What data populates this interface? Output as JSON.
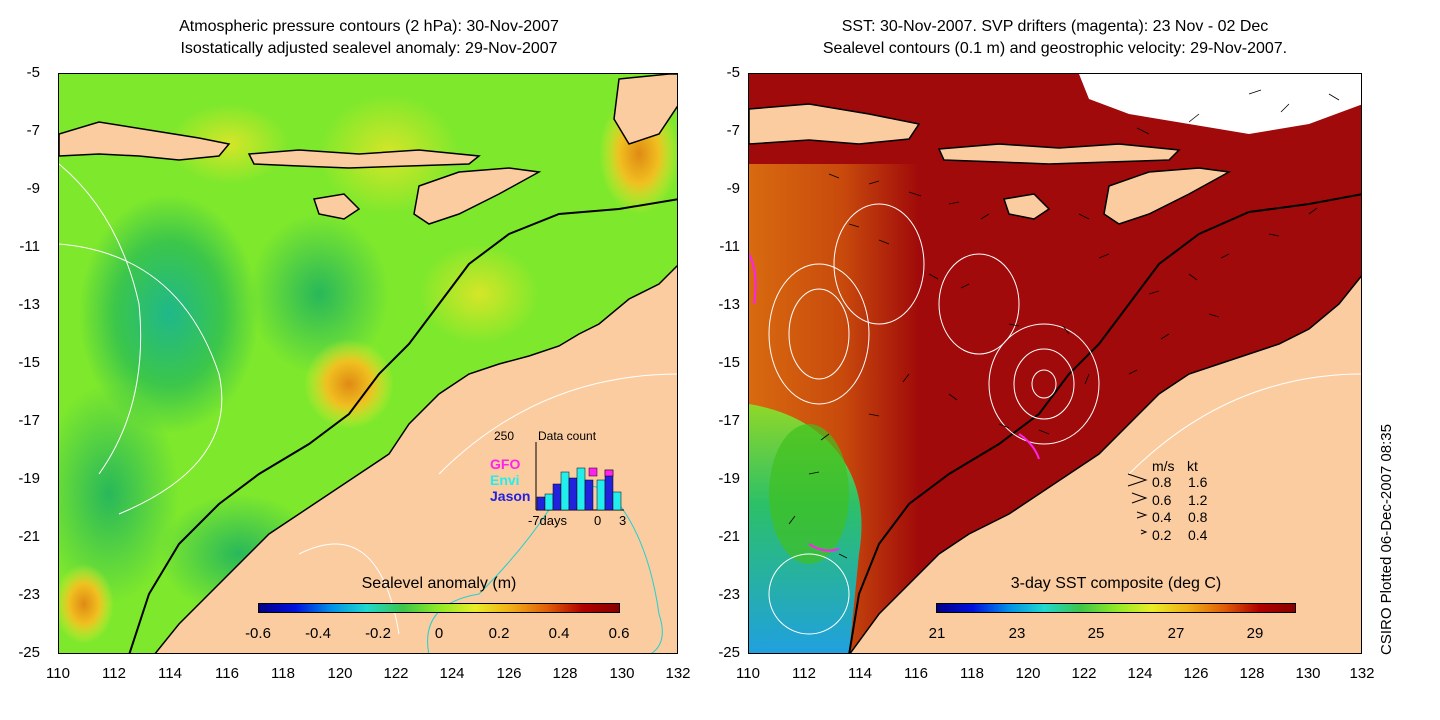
{
  "left_panel": {
    "title_line1": "Atmospheric pressure contours (2 hPa): 30-Nov-2007",
    "title_line2": "Isostatically adjusted sealevel anomaly: 29-Nov-2007",
    "colorbar_title": "Sealevel anomaly (m)",
    "colorbar_ticks": [
      "-0.6",
      "-0.4",
      "-0.2",
      "0",
      "0.2",
      "0.4",
      "0.6"
    ],
    "data_count": {
      "max_label": "250",
      "title": "Data count",
      "axis_labels": [
        "-7days",
        "0",
        "3"
      ],
      "legend": [
        {
          "label": "GFO",
          "color": "#ff22ee"
        },
        {
          "label": "Envi",
          "color": "#22eeee"
        },
        {
          "label": "Jason",
          "color": "#2222dd"
        }
      ]
    }
  },
  "right_panel": {
    "title_line1": "SST: 30-Nov-2007. SVP drifters (magenta): 23 Nov - 02 Dec",
    "title_line2": "Sealevel contours (0.1 m) and geostrophic velocity: 29-Nov-2007.",
    "colorbar_title": "3-day SST composite (deg C)",
    "colorbar_ticks": [
      "21",
      "23",
      "25",
      "27",
      "29"
    ],
    "velocity_legend": {
      "header_ms": "m/s",
      "header_kt": "kt",
      "rows": [
        {
          "ms": "0.8",
          "kt": "1.6"
        },
        {
          "ms": "0.6",
          "kt": "1.2"
        },
        {
          "ms": "0.4",
          "kt": "0.8"
        },
        {
          "ms": "0.2",
          "kt": "0.4"
        }
      ]
    }
  },
  "axes": {
    "lat_ticks": [
      "-5",
      "-7",
      "-9",
      "-11",
      "-13",
      "-15",
      "-17",
      "-19",
      "-21",
      "-23",
      "-25"
    ],
    "lon_ticks": [
      "110",
      "112",
      "114",
      "116",
      "118",
      "120",
      "122",
      "124",
      "126",
      "128",
      "130",
      "132"
    ]
  },
  "credit": "CSIRO Plotted 06-Dec-2007 08:35",
  "colors": {
    "land": "#fbcca0",
    "sst_warm": "#a00a0a",
    "sla_base": "#7ee82c"
  }
}
